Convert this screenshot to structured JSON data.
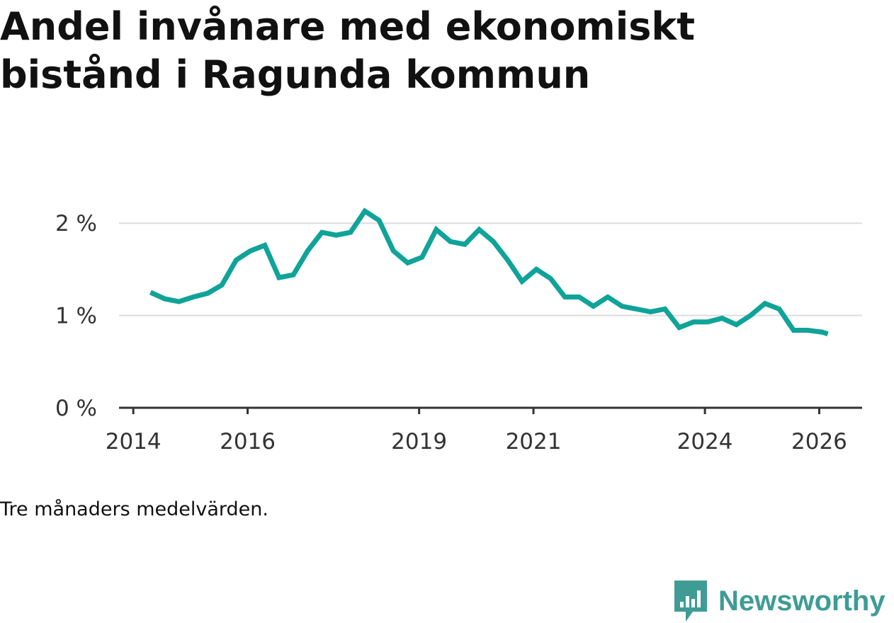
{
  "title": "Andel invånare med ekonomiskt bistånd i Ragunda kommun",
  "footnote": "Tre månaders medelvärden.",
  "brand": {
    "name": "Newsworthy",
    "icon": "newsworthy-logo-icon",
    "color": "#3e9c95"
  },
  "chart_data": {
    "type": "line",
    "title": "Andel invånare med ekonomiskt bistånd i Ragunda kommun",
    "xlabel": "",
    "ylabel": "",
    "ylim": [
      0,
      2.5
    ],
    "xlim": [
      2013.75,
      2026.75
    ],
    "grid": true,
    "line_color": "#0fa399",
    "y_ticks": [
      {
        "value": 0,
        "label": "0 %"
      },
      {
        "value": 1,
        "label": "1 %"
      },
      {
        "value": 2,
        "label": "2 %"
      }
    ],
    "x_ticks": [
      {
        "value": 2014,
        "label": "2014"
      },
      {
        "value": 2016,
        "label": "2016"
      },
      {
        "value": 2019,
        "label": "2019"
      },
      {
        "value": 2021,
        "label": "2021"
      },
      {
        "value": 2024,
        "label": "2024"
      },
      {
        "value": 2026,
        "label": "2026"
      }
    ],
    "series": [
      {
        "name": "Ragunda kommun",
        "x": [
          2014.3,
          2014.55,
          2014.8,
          2015.05,
          2015.3,
          2015.55,
          2015.8,
          2016.05,
          2016.3,
          2016.55,
          2016.8,
          2017.05,
          2017.3,
          2017.55,
          2017.8,
          2018.05,
          2018.3,
          2018.55,
          2018.8,
          2019.05,
          2019.3,
          2019.55,
          2019.8,
          2020.05,
          2020.3,
          2020.55,
          2020.8,
          2021.05,
          2021.3,
          2021.55,
          2021.8,
          2022.05,
          2022.3,
          2022.55,
          2022.8,
          2023.05,
          2023.3,
          2023.55,
          2023.8,
          2024.05,
          2024.3,
          2024.55,
          2024.8,
          2025.05,
          2025.3,
          2025.55,
          2025.8,
          2026.05,
          2026.15
        ],
        "values": [
          1.25,
          1.18,
          1.15,
          1.2,
          1.24,
          1.33,
          1.6,
          1.7,
          1.76,
          1.41,
          1.44,
          1.7,
          1.9,
          1.87,
          1.9,
          2.13,
          2.03,
          1.7,
          1.57,
          1.63,
          1.93,
          1.8,
          1.77,
          1.93,
          1.8,
          1.6,
          1.37,
          1.5,
          1.4,
          1.2,
          1.2,
          1.1,
          1.2,
          1.1,
          1.07,
          1.04,
          1.07,
          0.87,
          0.93,
          0.93,
          0.97,
          0.9,
          1.0,
          1.13,
          1.07,
          0.84,
          0.84,
          0.82,
          0.8
        ]
      }
    ]
  }
}
